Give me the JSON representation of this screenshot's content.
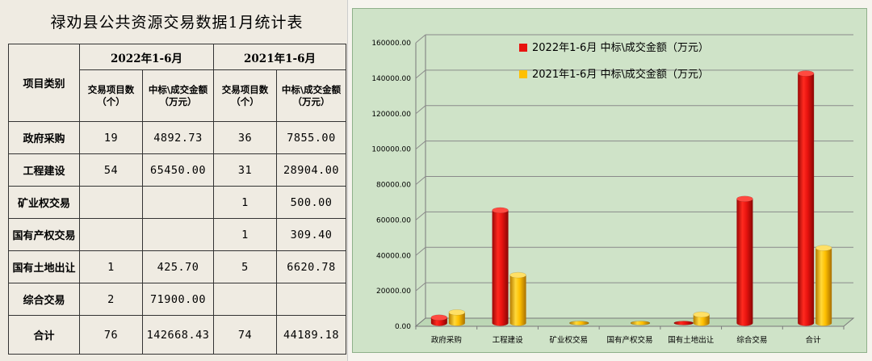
{
  "table": {
    "title": "禄劝县公共资源交易数据1月统计表",
    "category_header": "项目类别",
    "period_2022": "2022年1-6月",
    "period_2021": "2021年1-6月",
    "count_header": "交易项目数（个）",
    "amount_header": "中标\\成交金额（万元）",
    "rows": [
      {
        "label": "政府采购",
        "c2022": "19",
        "a2022": "4892.73",
        "c2021": "36",
        "a2021": "7855.00"
      },
      {
        "label": "工程建设",
        "c2022": "54",
        "a2022": "65450.00",
        "c2021": "31",
        "a2021": "28904.00"
      },
      {
        "label": "矿业权交易",
        "c2022": "",
        "a2022": "",
        "c2021": "1",
        "a2021": "500.00"
      },
      {
        "label": "国有产权交易",
        "c2022": "",
        "a2022": "",
        "c2021": "1",
        "a2021": "309.40"
      },
      {
        "label": "国有土地出让",
        "c2022": "1",
        "a2022": "425.70",
        "c2021": "5",
        "a2021": "6620.78"
      },
      {
        "label": "综合交易",
        "c2022": "2",
        "a2022": "71900.00",
        "c2021": "",
        "a2021": ""
      },
      {
        "label": "合计",
        "c2022": "76",
        "a2022": "142668.43",
        "c2021": "74",
        "a2021": "44189.18"
      }
    ]
  },
  "chart_data": {
    "type": "bar",
    "categories": [
      "政府采购",
      "工程建设",
      "矿业权交易",
      "国有产权交易",
      "国有土地出让",
      "综合交易",
      "合计"
    ],
    "series": [
      {
        "name": "2022年1-6月 中标\\成交金额（万元）",
        "color": "#e8130f",
        "values": [
          4892.73,
          65450.0,
          0,
          0,
          425.7,
          71900.0,
          142668.43
        ]
      },
      {
        "name": "2021年1-6月 中标\\成交金额（万元）",
        "color": "#ffc000",
        "values": [
          7855.0,
          28904.0,
          500.0,
          309.4,
          6620.78,
          0,
          44189.18
        ]
      }
    ],
    "yticks": [
      "0.00",
      "20000.00",
      "40000.00",
      "60000.00",
      "80000.00",
      "100000.00",
      "120000.00",
      "140000.00",
      "160000.00"
    ],
    "ylim": [
      0,
      160000
    ],
    "legend_position": "top-right",
    "grid": true,
    "background": "#cfe3c8"
  }
}
